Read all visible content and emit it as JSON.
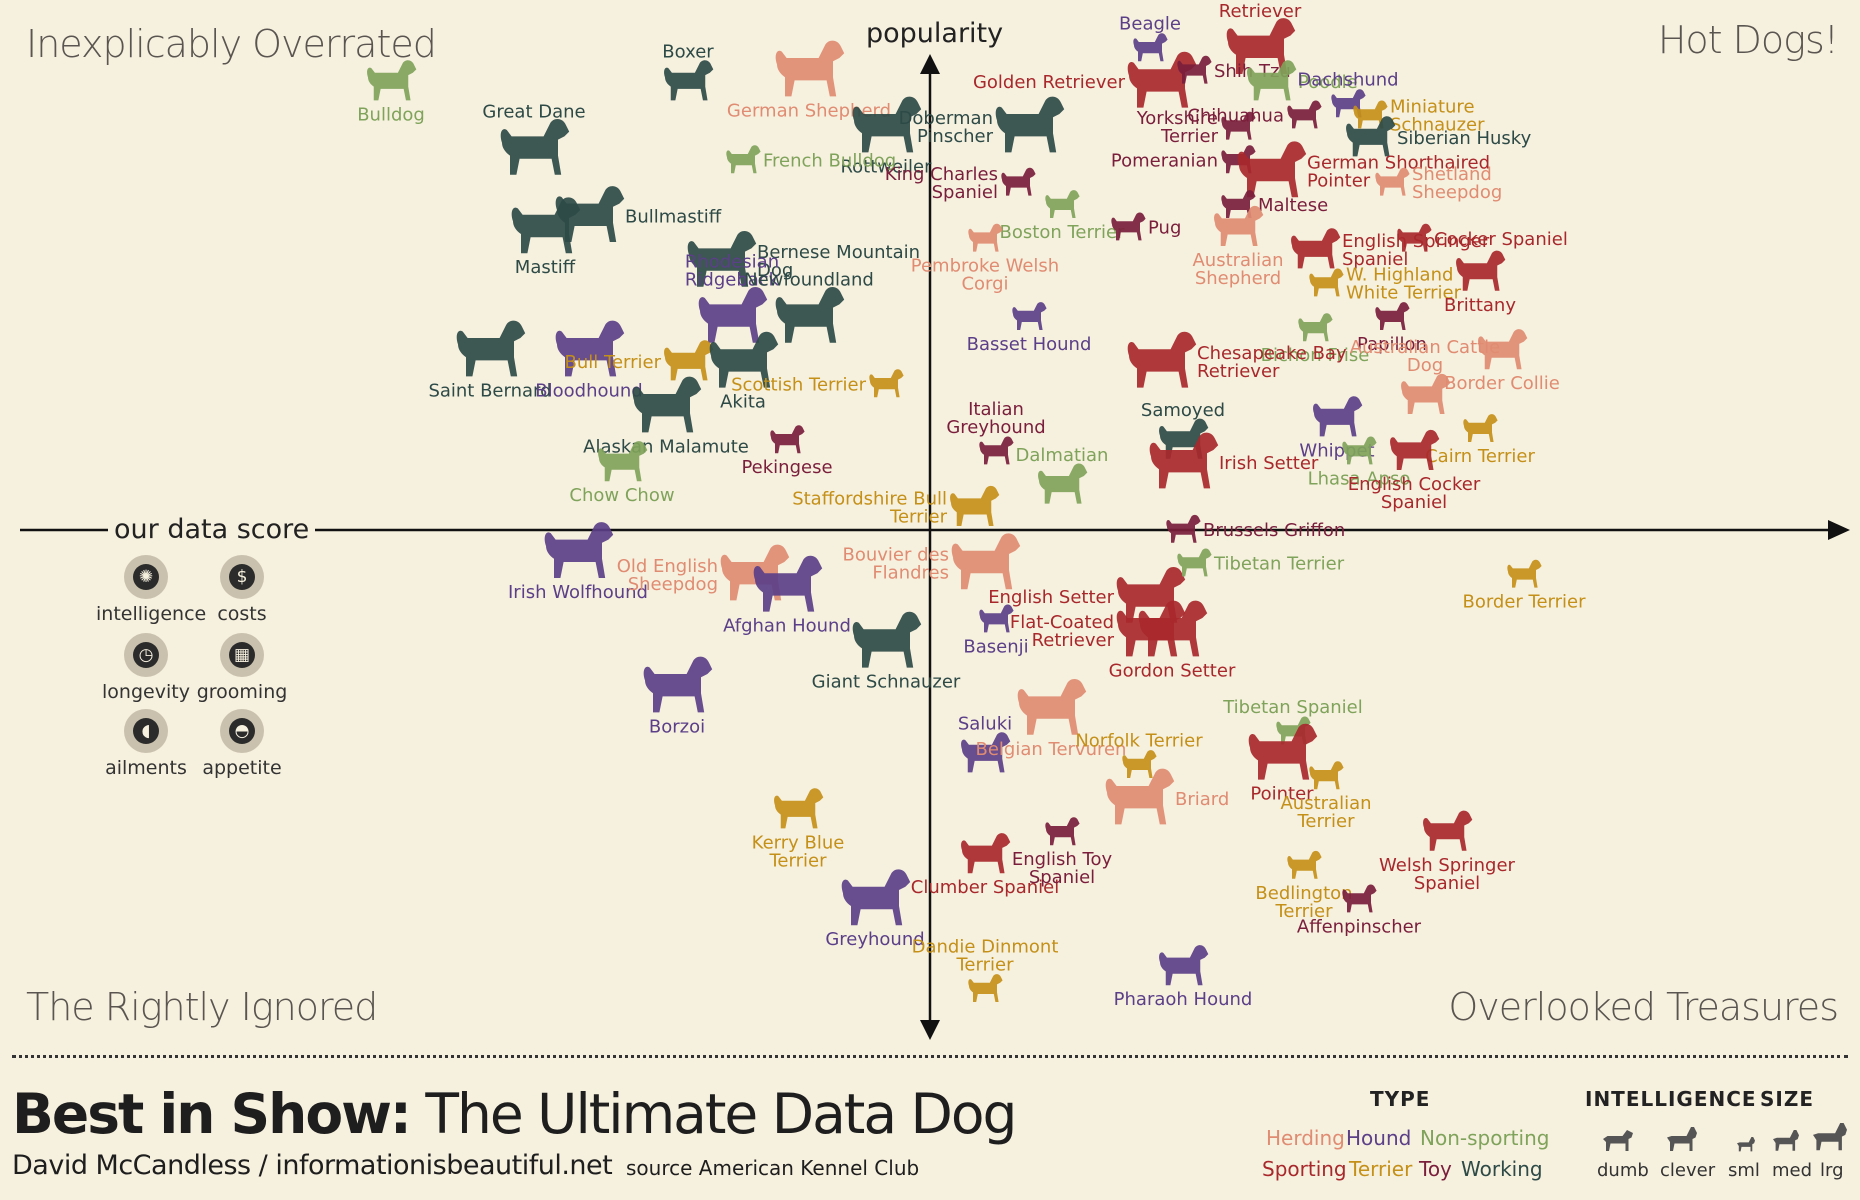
{
  "page": {
    "quadrants": {
      "top_left": "Inexplicably Overrated",
      "top_right": "Hot Dogs!",
      "bottom_left": "The Rightly Ignored",
      "bottom_right": "Overlooked Treasures"
    },
    "footer": {
      "title_bold": "Best in Show:",
      "title_rest": "The Ultimate Data Dog",
      "author": "David McCandless / informationisbeautiful.net",
      "source": "source American Kennel Club"
    },
    "score_legend": {
      "title": "our data score",
      "items": [
        {
          "label": "intelligence",
          "icon": "brain-icon",
          "glyph": "✺"
        },
        {
          "label": "costs",
          "icon": "dollar-icon",
          "glyph": "$"
        },
        {
          "label": "longevity",
          "icon": "clock-icon",
          "glyph": "◷"
        },
        {
          "label": "grooming",
          "icon": "comb-icon",
          "glyph": "▦"
        },
        {
          "label": "ailments",
          "icon": "pill-icon",
          "glyph": "◖"
        },
        {
          "label": "appetite",
          "icon": "bowl-icon",
          "glyph": "◓"
        }
      ]
    },
    "type_legend": {
      "title": "TYPE",
      "types": [
        {
          "label": "Herding",
          "color": "#e08c72"
        },
        {
          "label": "Hound",
          "color": "#5b3f88"
        },
        {
          "label": "Non-sporting",
          "color": "#7fa35a"
        },
        {
          "label": "Sporting",
          "color": "#a8282c"
        },
        {
          "label": "Terrier",
          "color": "#c49018"
        },
        {
          "label": "Toy",
          "color": "#7a1e3c"
        },
        {
          "label": "Working",
          "color": "#2d4a47"
        }
      ]
    },
    "intelligence_legend": {
      "title": "INTELLIGENCE",
      "labels": [
        "dumb",
        "clever"
      ]
    },
    "size_legend": {
      "title": "SIZE",
      "labels": [
        "sml",
        "med",
        "lrg"
      ]
    }
  },
  "chart_data": {
    "type": "scatter",
    "xlabel": "our data score",
    "ylabel": "popularity",
    "points": [
      {
        "name": "Bulldog",
        "type": "Non-sporting",
        "size": "med",
        "x": -4.9,
        "y": 4.0,
        "label_pos": "below"
      },
      {
        "name": "Boxer",
        "type": "Working",
        "size": "med",
        "x": -2.2,
        "y": 4.0,
        "label_pos": "above"
      },
      {
        "name": "German Shepherd",
        "type": "Herding",
        "size": "lrg",
        "x": -1.1,
        "y": 4.1,
        "label_pos": "below"
      },
      {
        "name": "Rottweiler",
        "type": "Working",
        "size": "lrg",
        "x": -0.4,
        "y": 3.6,
        "label_pos": "below"
      },
      {
        "name": "Great Dane",
        "type": "Working",
        "size": "lrg",
        "x": -3.6,
        "y": 3.4,
        "label_pos": "above"
      },
      {
        "name": "French Bulldog",
        "type": "Non-sporting",
        "size": "sml",
        "x": -1.7,
        "y": 3.3,
        "label_pos": "right"
      },
      {
        "name": "Mastiff",
        "type": "Working",
        "size": "lrg",
        "x": -3.5,
        "y": 2.7,
        "label_pos": "below"
      },
      {
        "name": "Bullmastiff",
        "type": "Working",
        "size": "lrg",
        "x": -3.1,
        "y": 2.8,
        "label_pos": "right"
      },
      {
        "name": "Bernese Mountain Dog",
        "type": "Working",
        "size": "lrg",
        "x": -1.9,
        "y": 2.4,
        "label_pos": "right"
      },
      {
        "name": "Rhodesian Ridgeback",
        "type": "Hound",
        "size": "lrg",
        "x": -1.8,
        "y": 1.9,
        "label_pos": "above"
      },
      {
        "name": "Newfoundland",
        "type": "Working",
        "size": "lrg",
        "x": -1.1,
        "y": 1.9,
        "label_pos": "above"
      },
      {
        "name": "Saint Bernard",
        "type": "Working",
        "size": "lrg",
        "x": -4.0,
        "y": 1.6,
        "label_pos": "below"
      },
      {
        "name": "Bloodhound",
        "type": "Hound",
        "size": "lrg",
        "x": -3.1,
        "y": 1.6,
        "label_pos": "below"
      },
      {
        "name": "Bull Terrier",
        "type": "Terrier",
        "size": "med",
        "x": -2.2,
        "y": 1.5,
        "label_pos": "left"
      },
      {
        "name": "Akita",
        "type": "Working",
        "size": "lrg",
        "x": -1.7,
        "y": 1.5,
        "label_pos": "below"
      },
      {
        "name": "Scottish Terrier",
        "type": "Terrier",
        "size": "sml",
        "x": -0.4,
        "y": 1.3,
        "label_pos": "left"
      },
      {
        "name": "Alaskan Malamute",
        "type": "Working",
        "size": "lrg",
        "x": -2.4,
        "y": 1.1,
        "label_pos": "below"
      },
      {
        "name": "Pekingese",
        "type": "Toy",
        "size": "sml",
        "x": -1.3,
        "y": 0.8,
        "label_pos": "below"
      },
      {
        "name": "Chow Chow",
        "type": "Non-sporting",
        "size": "med",
        "x": -2.8,
        "y": 0.6,
        "label_pos": "below"
      },
      {
        "name": "Irish Wolfhound",
        "type": "Hound",
        "size": "lrg",
        "x": -3.2,
        "y": -0.2,
        "label_pos": "below"
      },
      {
        "name": "Old English Sheepdog",
        "type": "Herding",
        "size": "lrg",
        "x": -1.6,
        "y": -0.4,
        "label_pos": "left"
      },
      {
        "name": "Afghan Hound",
        "type": "Hound",
        "size": "lrg",
        "x": -1.3,
        "y": -0.5,
        "label_pos": "below"
      },
      {
        "name": "Giant Schnauzer",
        "type": "Working",
        "size": "lrg",
        "x": -0.4,
        "y": -1.0,
        "label_pos": "below"
      },
      {
        "name": "Borzoi",
        "type": "Hound",
        "size": "lrg",
        "x": -2.3,
        "y": -1.4,
        "label_pos": "below"
      },
      {
        "name": "Kerry Blue Terrier",
        "type": "Terrier",
        "size": "med",
        "x": -1.2,
        "y": -2.5,
        "label_pos": "below"
      },
      {
        "name": "Greyhound",
        "type": "Hound",
        "size": "lrg",
        "x": -0.5,
        "y": -3.3,
        "label_pos": "below"
      },
      {
        "name": "Beagle",
        "type": "Hound",
        "size": "sml",
        "x": 2.0,
        "y": 4.3,
        "label_pos": "above"
      },
      {
        "name": "Labrador Retriever",
        "type": "Sporting",
        "size": "lrg",
        "x": 3.0,
        "y": 4.3,
        "label_pos": "above"
      },
      {
        "name": "Golden Retriever",
        "type": "Sporting",
        "size": "lrg",
        "x": 2.1,
        "y": 4.0,
        "label_pos": "left"
      },
      {
        "name": "Shih Tzu",
        "type": "Toy",
        "size": "sml",
        "x": 2.4,
        "y": 4.1,
        "label_pos": "right"
      },
      {
        "name": "Poodle",
        "type": "Non-sporting",
        "size": "med",
        "x": 3.1,
        "y": 4.0,
        "label_pos": "right"
      },
      {
        "name": "Dachshund",
        "type": "Hound",
        "size": "sml",
        "x": 3.8,
        "y": 3.8,
        "label_pos": "above"
      },
      {
        "name": "Chihuahua",
        "type": "Toy",
        "size": "sml",
        "x": 3.4,
        "y": 3.7,
        "label_pos": "left"
      },
      {
        "name": "Miniature Schnauzer",
        "type": "Terrier",
        "size": "sml",
        "x": 4.0,
        "y": 3.7,
        "label_pos": "right"
      },
      {
        "name": "Yorkshire Terrier",
        "type": "Toy",
        "size": "sml",
        "x": 2.8,
        "y": 3.6,
        "label_pos": "left"
      },
      {
        "name": "Siberian Husky",
        "type": "Working",
        "size": "med",
        "x": 4.0,
        "y": 3.5,
        "label_pos": "right"
      },
      {
        "name": "Doberman Pinscher",
        "type": "Working",
        "size": "lrg",
        "x": 0.9,
        "y": 3.6,
        "label_pos": "left"
      },
      {
        "name": "Pomeranian",
        "type": "Toy",
        "size": "sml",
        "x": 2.8,
        "y": 3.3,
        "label_pos": "left"
      },
      {
        "name": "King Charles Spaniel",
        "type": "Toy",
        "size": "sml",
        "x": 0.8,
        "y": 3.1,
        "label_pos": "left"
      },
      {
        "name": "German Shorthaired Pointer",
        "type": "Sporting",
        "size": "lrg",
        "x": 3.1,
        "y": 3.2,
        "label_pos": "right"
      },
      {
        "name": "Shetland Sheepdog",
        "type": "Herding",
        "size": "sml",
        "x": 4.2,
        "y": 3.1,
        "label_pos": "right"
      },
      {
        "name": "Maltese",
        "type": "Toy",
        "size": "sml",
        "x": 2.8,
        "y": 2.9,
        "label_pos": "right"
      },
      {
        "name": "Boston Terrier",
        "type": "Non-sporting",
        "size": "sml",
        "x": 1.2,
        "y": 2.9,
        "label_pos": "below"
      },
      {
        "name": "Pug",
        "type": "Toy",
        "size": "sml",
        "x": 1.8,
        "y": 2.7,
        "label_pos": "right"
      },
      {
        "name": "Pembroke Welsh Corgi",
        "type": "Herding",
        "size": "sml",
        "x": 0.5,
        "y": 2.6,
        "label_pos": "below"
      },
      {
        "name": "Australian Shepherd",
        "type": "Herding",
        "size": "med",
        "x": 2.8,
        "y": 2.7,
        "label_pos": "below"
      },
      {
        "name": "English Springer Spaniel",
        "type": "Sporting",
        "size": "med",
        "x": 3.5,
        "y": 2.5,
        "label_pos": "right"
      },
      {
        "name": "Cocker Spaniel",
        "type": "Sporting",
        "size": "sml",
        "x": 4.4,
        "y": 2.6,
        "label_pos": "right"
      },
      {
        "name": "W. Highland White Terrier",
        "type": "Terrier",
        "size": "sml",
        "x": 3.6,
        "y": 2.2,
        "label_pos": "right"
      },
      {
        "name": "Brittany",
        "type": "Sporting",
        "size": "med",
        "x": 5.0,
        "y": 2.3,
        "label_pos": "below"
      },
      {
        "name": "Basset Hound",
        "type": "Hound",
        "size": "sml",
        "x": 0.9,
        "y": 1.9,
        "label_pos": "below"
      },
      {
        "name": "Bichon Frise",
        "type": "Non-sporting",
        "size": "sml",
        "x": 3.5,
        "y": 1.8,
        "label_pos": "below"
      },
      {
        "name": "Papillon",
        "type": "Toy",
        "size": "sml",
        "x": 4.2,
        "y": 1.9,
        "label_pos": "below"
      },
      {
        "name": "Chesapeake Bay Retriever",
        "type": "Sporting",
        "size": "lrg",
        "x": 2.1,
        "y": 1.5,
        "label_pos": "right"
      },
      {
        "name": "Border Collie",
        "type": "Herding",
        "size": "med",
        "x": 5.2,
        "y": 1.6,
        "label_pos": "below"
      },
      {
        "name": "Australian Cattle Dog",
        "type": "Herding",
        "size": "med",
        "x": 4.5,
        "y": 1.2,
        "label_pos": "above"
      },
      {
        "name": "Whippet",
        "type": "Hound",
        "size": "med",
        "x": 3.7,
        "y": 1.0,
        "label_pos": "below"
      },
      {
        "name": "Samoyed",
        "type": "Working",
        "size": "med",
        "x": 2.3,
        "y": 0.8,
        "label_pos": "above"
      },
      {
        "name": "Cairn Terrier",
        "type": "Terrier",
        "size": "sml",
        "x": 5.0,
        "y": 0.9,
        "label_pos": "below"
      },
      {
        "name": "Italian Greyhound",
        "type": "Toy",
        "size": "sml",
        "x": 0.6,
        "y": 0.7,
        "label_pos": "above"
      },
      {
        "name": "Dalmatian",
        "type": "Non-sporting",
        "size": "med",
        "x": 1.2,
        "y": 0.4,
        "label_pos": "above"
      },
      {
        "name": "Irish Setter",
        "type": "Sporting",
        "size": "lrg",
        "x": 2.3,
        "y": 0.6,
        "label_pos": "right"
      },
      {
        "name": "Lhasa Apso",
        "type": "Non-sporting",
        "size": "sml",
        "x": 3.9,
        "y": 0.7,
        "label_pos": "below"
      },
      {
        "name": "English Cocker Spaniel",
        "type": "Sporting",
        "size": "med",
        "x": 4.4,
        "y": 0.7,
        "label_pos": "below"
      },
      {
        "name": "Staffordshire Bull Terrier",
        "type": "Terrier",
        "size": "med",
        "x": 0.4,
        "y": 0.2,
        "label_pos": "left"
      },
      {
        "name": "Brussels Griffon",
        "type": "Toy",
        "size": "sml",
        "x": 2.3,
        "y": 0.0,
        "label_pos": "right"
      },
      {
        "name": "Bouvier des Flandres",
        "type": "Herding",
        "size": "lrg",
        "x": 0.5,
        "y": -0.3,
        "label_pos": "left"
      },
      {
        "name": "English Setter",
        "type": "Sporting",
        "size": "lrg",
        "x": 2.0,
        "y": -0.6,
        "label_pos": "left"
      },
      {
        "name": "Tibetan Terrier",
        "type": "Non-sporting",
        "size": "sml",
        "x": 2.4,
        "y": -0.3,
        "label_pos": "right"
      },
      {
        "name": "Border Terrier",
        "type": "Terrier",
        "size": "sml",
        "x": 5.4,
        "y": -0.4,
        "label_pos": "below"
      },
      {
        "name": "Flat-Coated Retriever",
        "type": "Sporting",
        "size": "lrg",
        "x": 2.0,
        "y": -0.9,
        "label_pos": "left"
      },
      {
        "name": "Basenji",
        "type": "Hound",
        "size": "sml",
        "x": 0.6,
        "y": -0.8,
        "label_pos": "below"
      },
      {
        "name": "Gordon Setter",
        "type": "Sporting",
        "size": "lrg",
        "x": 2.2,
        "y": -0.9,
        "label_pos": "below"
      },
      {
        "name": "Saluki",
        "type": "Hound",
        "size": "med",
        "x": 0.5,
        "y": -2.0,
        "label_pos": "above"
      },
      {
        "name": "Belgian Tervuren",
        "type": "Herding",
        "size": "lrg",
        "x": 1.1,
        "y": -1.6,
        "label_pos": "below"
      },
      {
        "name": "Tibetan Spaniel",
        "type": "Non-sporting",
        "size": "sml",
        "x": 3.3,
        "y": -1.8,
        "label_pos": "above"
      },
      {
        "name": "Pointer",
        "type": "Sporting",
        "size": "lrg",
        "x": 3.2,
        "y": -2.0,
        "label_pos": "below"
      },
      {
        "name": "Norfolk Terrier",
        "type": "Terrier",
        "size": "sml",
        "x": 1.9,
        "y": -2.1,
        "label_pos": "above"
      },
      {
        "name": "Briard",
        "type": "Herding",
        "size": "lrg",
        "x": 1.9,
        "y": -2.4,
        "label_pos": "right"
      },
      {
        "name": "Australian Terrier",
        "type": "Terrier",
        "size": "sml",
        "x": 3.6,
        "y": -2.2,
        "label_pos": "below"
      },
      {
        "name": "Clumber Spaniel",
        "type": "Sporting",
        "size": "med",
        "x": 0.5,
        "y": -2.9,
        "label_pos": "below"
      },
      {
        "name": "English Toy Spaniel",
        "type": "Toy",
        "size": "sml",
        "x": 1.2,
        "y": -2.7,
        "label_pos": "below"
      },
      {
        "name": "Welsh Springer Spaniel",
        "type": "Sporting",
        "size": "med",
        "x": 4.7,
        "y": -2.7,
        "label_pos": "below"
      },
      {
        "name": "Bedlington Terrier",
        "type": "Terrier",
        "size": "sml",
        "x": 3.4,
        "y": -3.0,
        "label_pos": "below"
      },
      {
        "name": "Affenpinscher",
        "type": "Toy",
        "size": "sml",
        "x": 3.9,
        "y": -3.3,
        "label_pos": "below"
      },
      {
        "name": "Dandie Dinmont Terrier",
        "type": "Terrier",
        "size": "sml",
        "x": 0.5,
        "y": -4.1,
        "label_pos": "above"
      },
      {
        "name": "Pharaoh Hound",
        "type": "Hound",
        "size": "med",
        "x": 2.3,
        "y": -3.9,
        "label_pos": "below"
      }
    ]
  }
}
